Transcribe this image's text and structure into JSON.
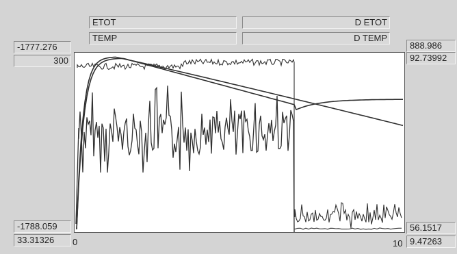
{
  "header": {
    "etot_label": "ETOT",
    "detot_label": "D ETOT",
    "temp_label": "TEMP",
    "dtemp_label": "D TEMP"
  },
  "left_scale": {
    "etot_max": "-1777.276",
    "temp_max": "300",
    "etot_min": "-1788.059",
    "temp_min": "33.31326"
  },
  "right_scale": {
    "detot_max": "888.986",
    "dtemp_max": "92.73992",
    "detot_min": "56.1517",
    "dtemp_min": "9.47263"
  },
  "x_axis": {
    "min_label": "0",
    "max_label": "10"
  },
  "colors": {
    "trace": "#303030",
    "plot_bg": "#ffffff",
    "panel_bg": "#d4d4d4"
  }
}
